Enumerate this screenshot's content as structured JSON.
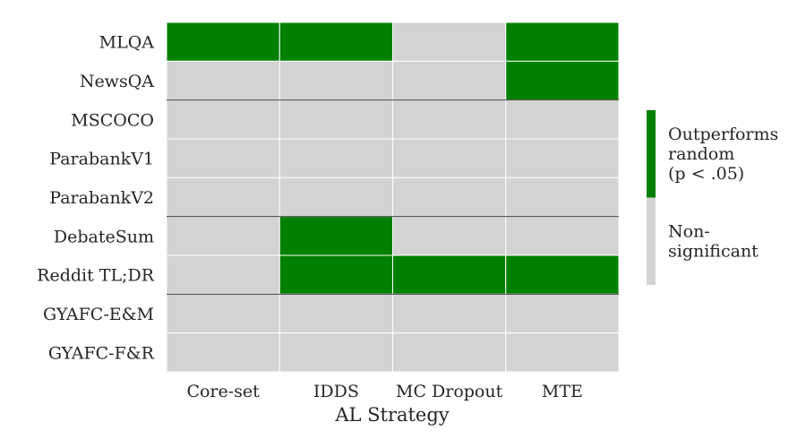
{
  "chart_data": {
    "type": "heatmap",
    "title": "",
    "xlabel": "AL Strategy",
    "ylabel": "",
    "columns": [
      "Core-set",
      "IDDS",
      "MC Dropout",
      "MTE"
    ],
    "rows": [
      "MLQA",
      "NewsQA",
      "MSCOCO",
      "ParabankV1",
      "ParabankV2",
      "DebateSum",
      "Reddit TL;DR",
      "GYAFC-E&M",
      "GYAFC-F&R"
    ],
    "values": [
      [
        1,
        1,
        0,
        1
      ],
      [
        0,
        0,
        0,
        1
      ],
      [
        0,
        0,
        0,
        0
      ],
      [
        0,
        0,
        0,
        0
      ],
      [
        0,
        0,
        0,
        0
      ],
      [
        0,
        1,
        0,
        0
      ],
      [
        0,
        1,
        1,
        1
      ],
      [
        0,
        0,
        0,
        0
      ],
      [
        0,
        0,
        0,
        0
      ]
    ],
    "group_separators_after_rows": [
      1,
      4,
      6
    ],
    "legend": {
      "position": "right",
      "entries": [
        {
          "value": 1,
          "lines": [
            "Outperforms",
            "random",
            "(p < .05)"
          ],
          "color": "#008000"
        },
        {
          "value": 0,
          "lines": [
            "Non-",
            "significant"
          ],
          "color": "#d3d3d3"
        }
      ]
    },
    "colors": {
      "significant": "#008000",
      "non_significant": "#d3d3d3",
      "cell_border": "#ffffff",
      "group_line": "#444444"
    }
  }
}
